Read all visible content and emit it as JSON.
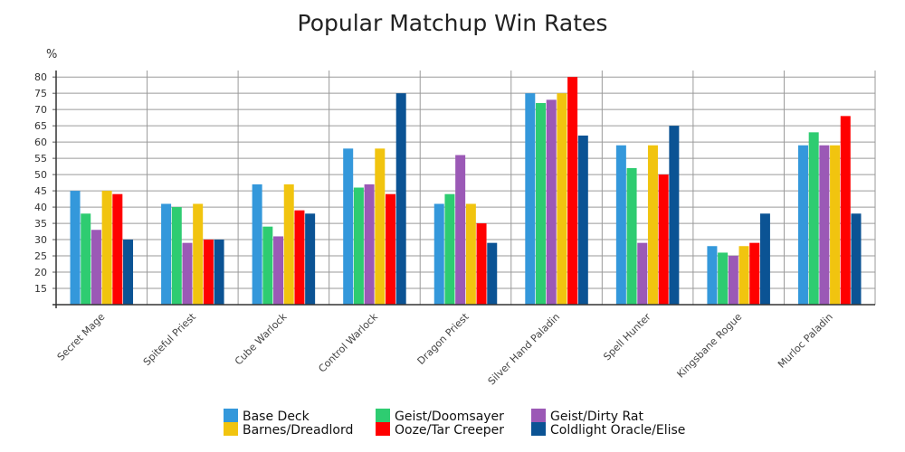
{
  "chart_data": {
    "type": "bar",
    "title": "Popular Matchup Win Rates",
    "ylabel": "%",
    "ylim": [
      10,
      82
    ],
    "yticks": [
      15,
      20,
      25,
      30,
      35,
      40,
      45,
      50,
      55,
      60,
      65,
      70,
      75,
      80
    ],
    "grid": true,
    "legend_position": "bottom",
    "categories": [
      "Secret Mage",
      "Spiteful Priest",
      "Cube Warlock",
      "Control Warlock",
      "Dragon Priest",
      "Silver Hand Paladin",
      "Spell Hunter",
      "Kingsbane Rogue",
      "Murloc Paladin"
    ],
    "series": [
      {
        "name": "Base Deck",
        "color": "#3498db",
        "values": [
          45,
          41,
          47,
          58,
          41,
          75,
          59,
          28,
          59
        ]
      },
      {
        "name": "Geist/Doomsayer",
        "color": "#2ecc71",
        "values": [
          38,
          40,
          34,
          46,
          44,
          72,
          52,
          26,
          63
        ]
      },
      {
        "name": "Geist/Dirty Rat",
        "color": "#9b59b6",
        "values": [
          33,
          29,
          31,
          47,
          56,
          73,
          29,
          25,
          59
        ]
      },
      {
        "name": "Barnes/Dreadlord",
        "color": "#f1c40f",
        "values": [
          45,
          41,
          47,
          58,
          41,
          75,
          59,
          28,
          59
        ]
      },
      {
        "name": "Ooze/Tar Creeper",
        "color": "#ff0000",
        "values": [
          44,
          30,
          39,
          44,
          35,
          80,
          50,
          29,
          68
        ]
      },
      {
        "name": "Coldlight Oracle/Elise",
        "color": "#0b5394",
        "values": [
          30,
          30,
          38,
          75,
          29,
          62,
          65,
          38,
          38
        ]
      }
    ]
  }
}
